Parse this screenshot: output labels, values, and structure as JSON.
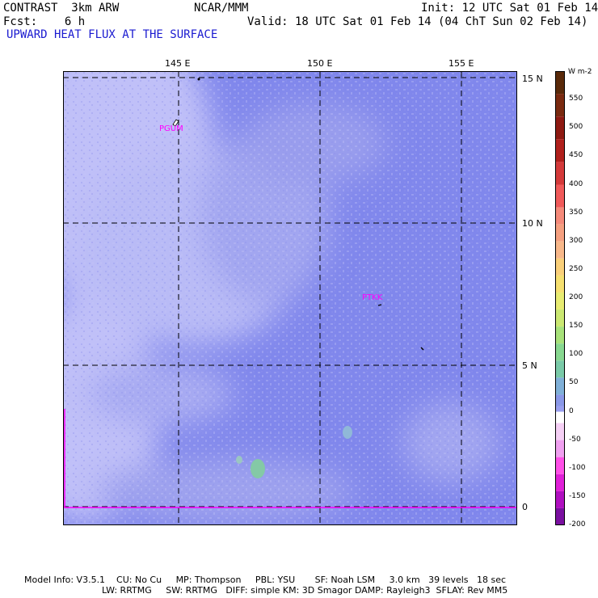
{
  "header": {
    "model": "CONTRAST  3km ARW",
    "org": "NCAR/MMM",
    "init": "Init: 12 UTC Sat 01 Feb 14",
    "fcst": "Fcst:    6 h",
    "valid": "Valid: 18 UTC Sat 01 Feb 14 (04 ChT Sun 02 Feb 14)",
    "field": "UPWARD HEAT FLUX AT THE SURFACE"
  },
  "map": {
    "lon_labels": [
      "145 E",
      "150 E",
      "155 E"
    ],
    "lat_labels": [
      "15 N",
      "10 N",
      "5 N",
      "0"
    ],
    "stations": [
      "PGUM",
      "PTKK"
    ]
  },
  "colorbar": {
    "unit": "W m-2",
    "labels": [
      "550",
      "500",
      "450",
      "400",
      "350",
      "300",
      "250",
      "200",
      "150",
      "100",
      "50",
      "0",
      "-50",
      "-100",
      "-150",
      "-200"
    ],
    "colors": {
      "ocean_low": "#c0c0f8",
      "ocean_mid": "#8f92ec",
      "ocean_high": "#7b80ec",
      "equator": "#ff00ff",
      "accent": "#1a1ad0"
    }
  },
  "footer": {
    "line1": "Model Info: V3.5.1    CU: No Cu     MP: Thompson     PBL: YSU       SF: Noah LSM     3.0 km   39 levels   18 sec",
    "line2": "LW: RRTMG     SW: RRTMG   DIFF: simple KM: 3D Smagor DAMP: Rayleigh3  SFLAY: Rev MM5"
  }
}
